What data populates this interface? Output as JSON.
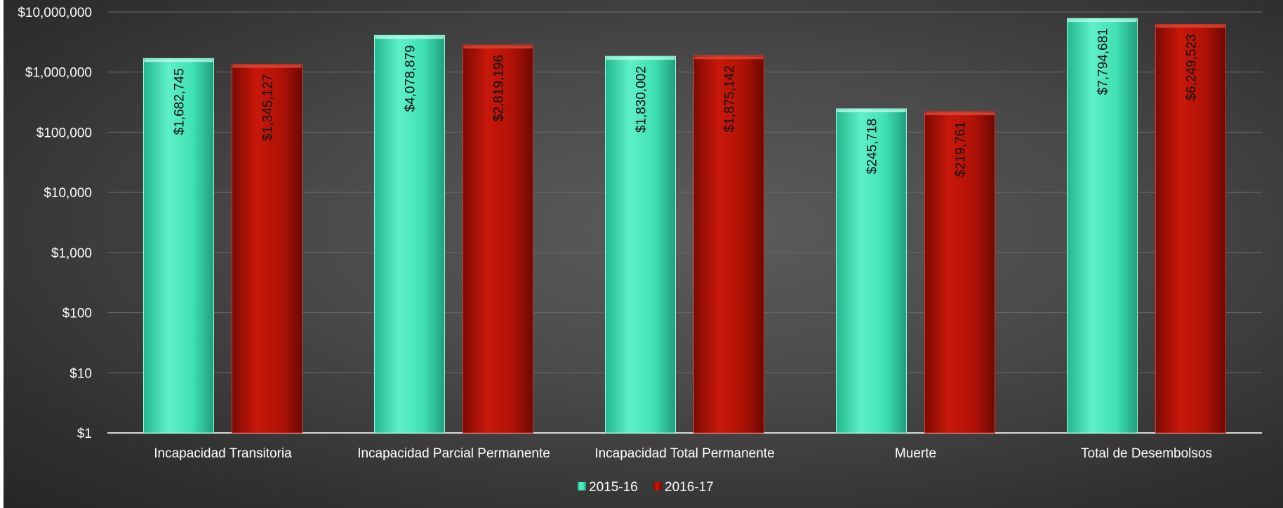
{
  "chart_data": {
    "type": "bar",
    "title": "",
    "xlabel": "",
    "ylabel": "",
    "y_scale": "log",
    "ylim": [
      1,
      10000000
    ],
    "y_ticks": [
      1,
      10,
      100,
      1000,
      10000,
      100000,
      1000000,
      10000000
    ],
    "y_tick_labels": [
      "$1",
      "$10",
      "$100",
      "$1,000",
      "$10,000",
      "$100,000",
      "$1,000,000",
      "$10,000,000"
    ],
    "grid": true,
    "legend_position": "bottom",
    "categories": [
      "Incapacidad Transitoria",
      "Incapacidad Parcial Permanente",
      "Incapacidad Total Permanente",
      "Muerte",
      "Total de Desembolsos"
    ],
    "series": [
      {
        "name": "2015-16",
        "color": "#3fe0b4",
        "values": [
          1682745,
          4078879,
          1830002,
          245718,
          7794681
        ],
        "labels": [
          "$1,682,745",
          "$4,078,879",
          "$1,830,002",
          "$245,718",
          "$7,794,681"
        ]
      },
      {
        "name": "2016-17",
        "color": "#b81206",
        "values": [
          1345127,
          2819196,
          1875142,
          219761,
          6249523
        ],
        "labels": [
          "$1,345,127",
          "$2,819,196",
          "$1,875,142",
          "$219,761",
          "$6,249,523"
        ]
      }
    ]
  }
}
